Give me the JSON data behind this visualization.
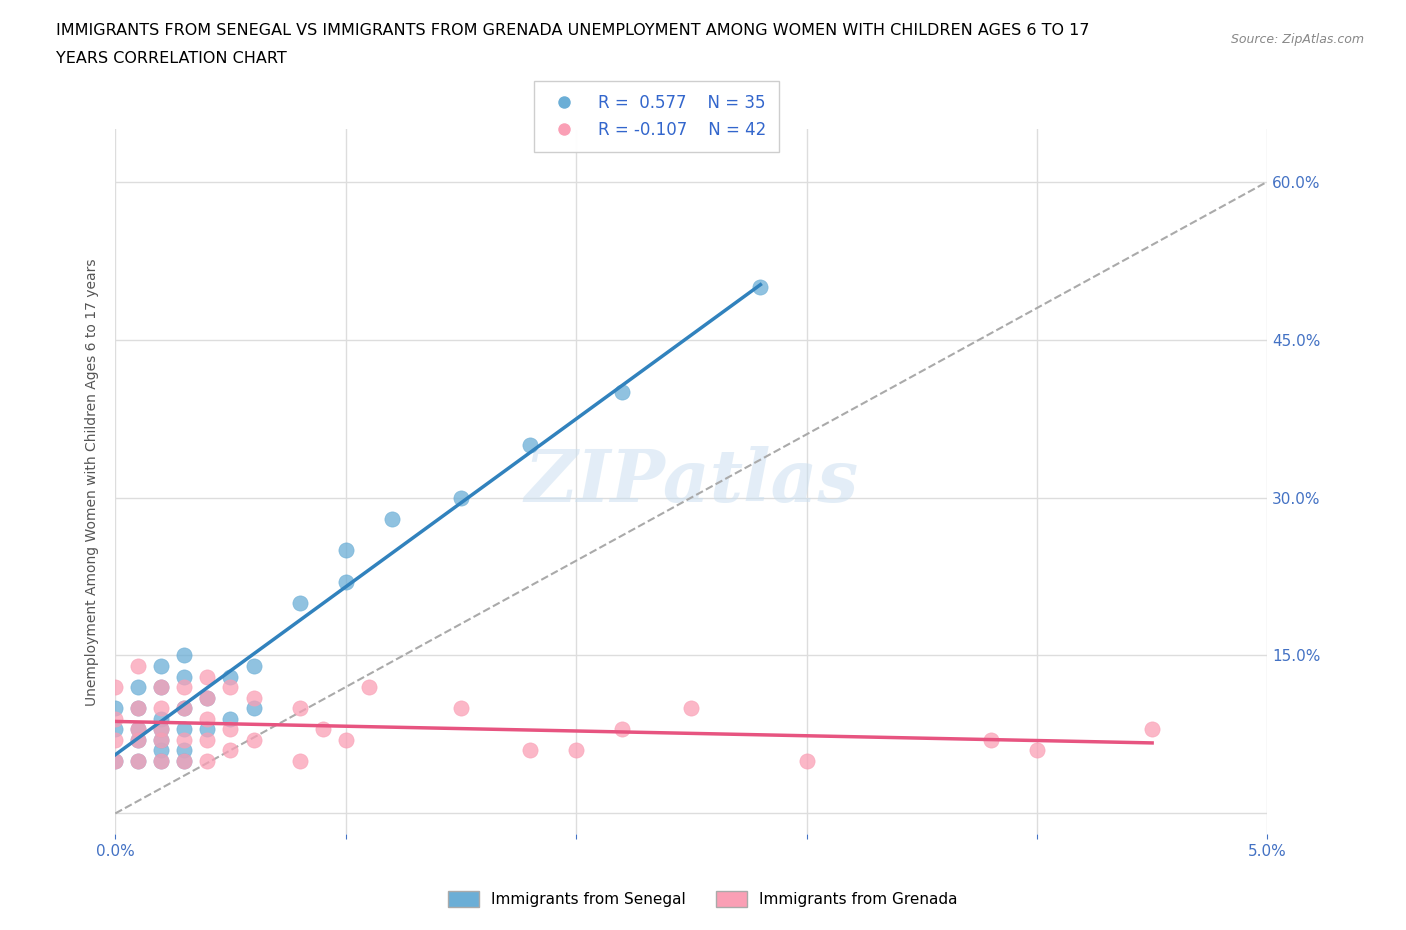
{
  "title_line1": "IMMIGRANTS FROM SENEGAL VS IMMIGRANTS FROM GRENADA UNEMPLOYMENT AMONG WOMEN WITH CHILDREN AGES 6 TO 17",
  "title_line2": "YEARS CORRELATION CHART",
  "source": "Source: ZipAtlas.com",
  "xlabel": "",
  "ylabel": "Unemployment Among Women with Children Ages 6 to 17 years",
  "xlim": [
    0.0,
    0.05
  ],
  "ylim": [
    -0.02,
    0.65
  ],
  "xticks": [
    0.0,
    0.01,
    0.02,
    0.03,
    0.04,
    0.05
  ],
  "yticks": [
    0.0,
    0.15,
    0.3,
    0.45,
    0.6
  ],
  "xticklabels": [
    "0.0%",
    "",
    "",
    "",
    "",
    "5.0%"
  ],
  "yticklabels_right": [
    "",
    "15.0%",
    "30.0%",
    "45.0%",
    "60.0%"
  ],
  "legend_label1": "Immigrants from Senegal",
  "legend_label2": "Immigrants from Grenada",
  "R1": "0.577",
  "N1": "35",
  "R2": "-0.107",
  "N2": "42",
  "color_senegal": "#6baed6",
  "color_grenada": "#fa9fb5",
  "color_senegal_line": "#3182bd",
  "color_grenada_line": "#e75480",
  "color_ref_line": "#aaaaaa",
  "watermark": "ZIPatlas",
  "senegal_x": [
    0.0,
    0.0,
    0.0,
    0.001,
    0.001,
    0.001,
    0.001,
    0.001,
    0.002,
    0.002,
    0.002,
    0.002,
    0.002,
    0.002,
    0.002,
    0.003,
    0.003,
    0.003,
    0.003,
    0.003,
    0.003,
    0.004,
    0.004,
    0.005,
    0.005,
    0.006,
    0.006,
    0.008,
    0.01,
    0.01,
    0.012,
    0.015,
    0.018,
    0.022,
    0.028
  ],
  "senegal_y": [
    0.05,
    0.08,
    0.1,
    0.05,
    0.07,
    0.08,
    0.1,
    0.12,
    0.05,
    0.06,
    0.07,
    0.08,
    0.09,
    0.12,
    0.14,
    0.05,
    0.06,
    0.08,
    0.1,
    0.13,
    0.15,
    0.08,
    0.11,
    0.09,
    0.13,
    0.1,
    0.14,
    0.2,
    0.22,
    0.25,
    0.28,
    0.3,
    0.35,
    0.4,
    0.5
  ],
  "grenada_x": [
    0.0,
    0.0,
    0.0,
    0.0,
    0.001,
    0.001,
    0.001,
    0.001,
    0.001,
    0.002,
    0.002,
    0.002,
    0.002,
    0.002,
    0.003,
    0.003,
    0.003,
    0.003,
    0.004,
    0.004,
    0.004,
    0.004,
    0.004,
    0.005,
    0.005,
    0.005,
    0.006,
    0.006,
    0.008,
    0.008,
    0.009,
    0.01,
    0.011,
    0.015,
    0.018,
    0.02,
    0.022,
    0.025,
    0.03,
    0.038,
    0.04,
    0.045
  ],
  "grenada_y": [
    0.05,
    0.07,
    0.09,
    0.12,
    0.05,
    0.07,
    0.08,
    0.1,
    0.14,
    0.05,
    0.07,
    0.08,
    0.1,
    0.12,
    0.05,
    0.07,
    0.1,
    0.12,
    0.05,
    0.07,
    0.09,
    0.11,
    0.13,
    0.06,
    0.08,
    0.12,
    0.07,
    0.11,
    0.05,
    0.1,
    0.08,
    0.07,
    0.12,
    0.1,
    0.06,
    0.06,
    0.08,
    0.1,
    0.05,
    0.07,
    0.06,
    0.08
  ],
  "bg_color": "#ffffff",
  "grid_color": "#dddddd",
  "tick_color": "#4472c4",
  "axis_color": "#cccccc"
}
